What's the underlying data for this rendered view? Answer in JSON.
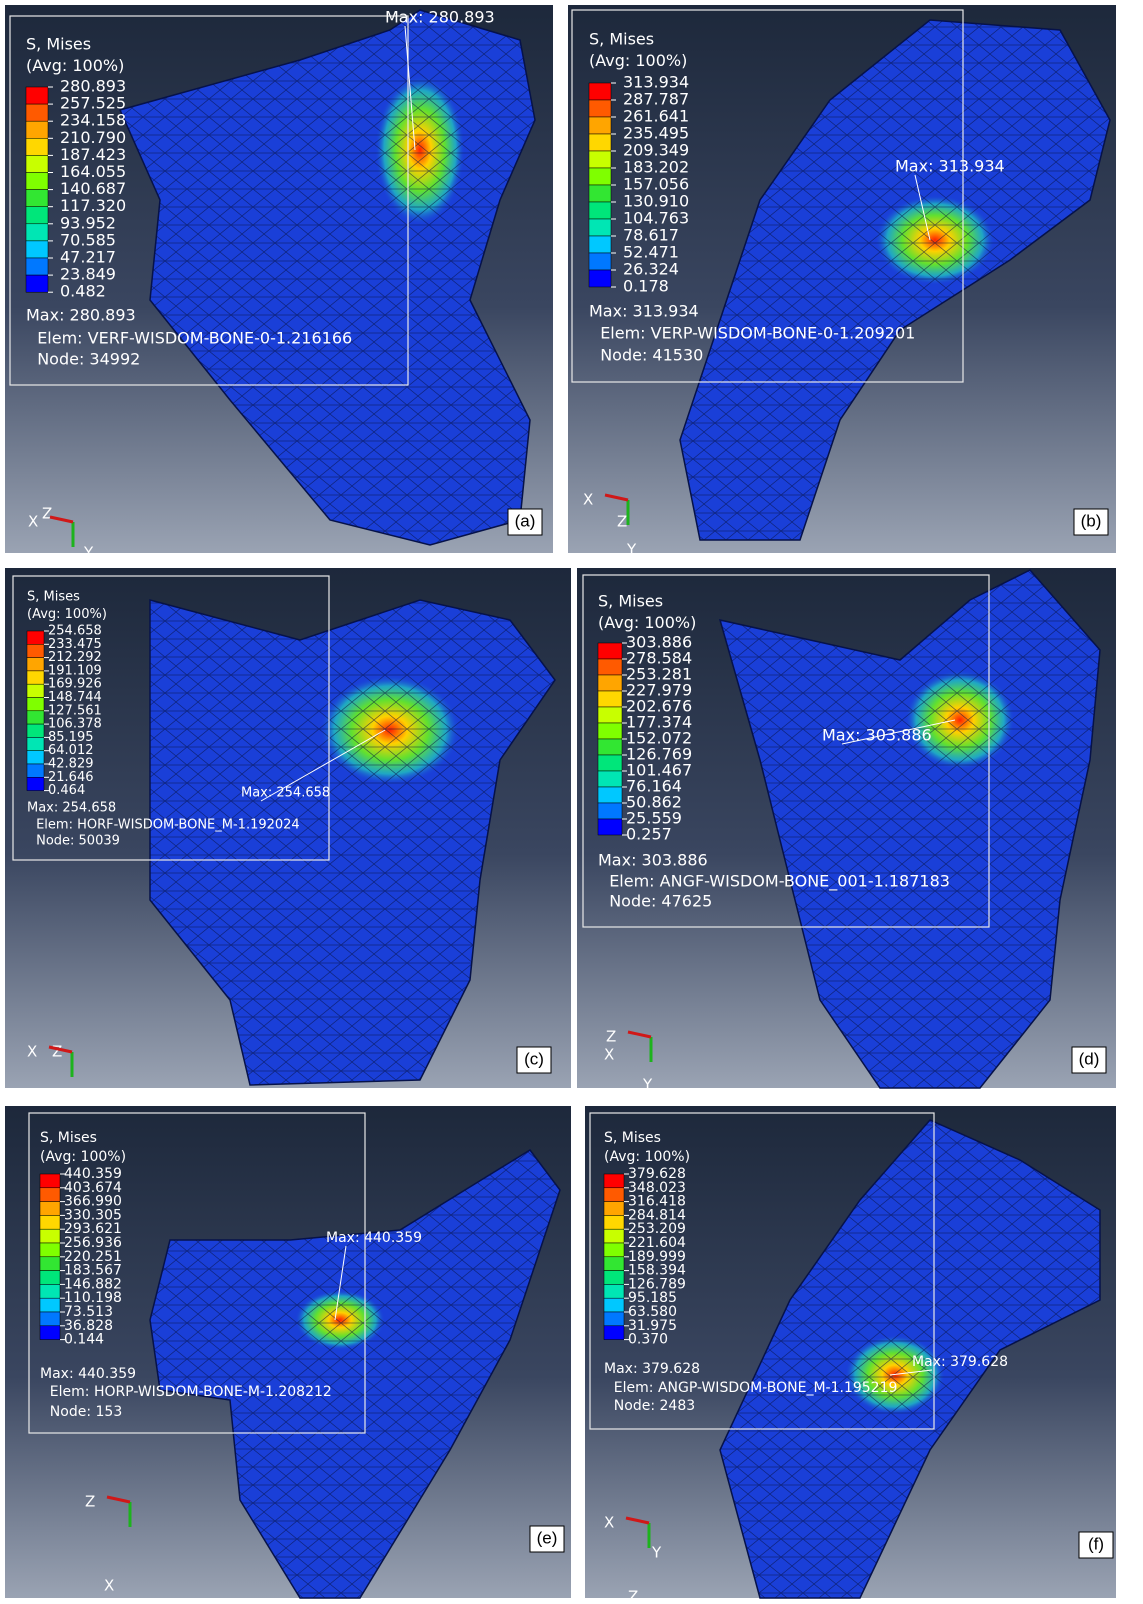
{
  "panels": [
    {
      "label": "(a)",
      "legend_title": "S, Mises",
      "legend_avg": "(Avg: 100%)",
      "legend_values": [
        "280.893",
        "257.525",
        "234.158",
        "210.790",
        "187.423",
        "164.055",
        "140.687",
        "117.320",
        "93.952",
        "70.585",
        "47.217",
        "23.849",
        "0.482"
      ],
      "max": "Max: 280.893",
      "elem": "Elem: VERF-WISDOM-BONE-0-1.216166",
      "node": "Node: 34992",
      "max_marker": "Max: 280.893",
      "axes": [
        "X",
        "Z",
        "Y"
      ]
    },
    {
      "label": "(b)",
      "legend_title": "S, Mises",
      "legend_avg": "(Avg: 100%)",
      "legend_values": [
        "313.934",
        "287.787",
        "261.641",
        "235.495",
        "209.349",
        "183.202",
        "157.056",
        "130.910",
        "104.763",
        "78.617",
        "52.471",
        "26.324",
        "0.178"
      ],
      "max": "Max: 313.934",
      "elem": "Elem: VERP-WISDOM-BONE-0-1.209201",
      "node": "Node: 41530",
      "max_marker": "Max: 313.934",
      "axes": [
        "X",
        "Z",
        "Y"
      ]
    },
    {
      "label": "(c)",
      "legend_title": "S, Mises",
      "legend_avg": "(Avg: 100%)",
      "legend_values": [
        "254.658",
        "233.475",
        "212.292",
        "191.109",
        "169.926",
        "148.744",
        "127.561",
        "106.378",
        "85.195",
        "64.012",
        "42.829",
        "21.646",
        "0.464"
      ],
      "max": "Max: 254.658",
      "elem": "Elem: HORF-WISDOM-BONE_M-1.192024",
      "node": "Node: 50039",
      "max_marker": "Max: 254.658",
      "axes": [
        "X",
        "Z"
      ]
    },
    {
      "label": "(d)",
      "legend_title": "S, Mises",
      "legend_avg": "(Avg: 100%)",
      "legend_values": [
        "303.886",
        "278.584",
        "253.281",
        "227.979",
        "202.676",
        "177.374",
        "152.072",
        "126.769",
        "101.467",
        "76.164",
        "50.862",
        "25.559",
        "0.257"
      ],
      "max": "Max: 303.886",
      "elem": "Elem: ANGF-WISDOM-BONE_001-1.187183",
      "node": "Node: 47625",
      "max_marker": "Max: 303.886",
      "axes": [
        "Z",
        "X",
        "Y"
      ]
    },
    {
      "label": "(e)",
      "legend_title": "S, Mises",
      "legend_avg": "(Avg: 100%)",
      "legend_values": [
        "440.359",
        "403.674",
        "366.990",
        "330.305",
        "293.621",
        "256.936",
        "220.251",
        "183.567",
        "146.882",
        "110.198",
        "73.513",
        "36.828",
        "0.144"
      ],
      "max": "Max: 440.359",
      "elem": "Elem: HORP-WISDOM-BONE-M-1.208212",
      "node": "Node: 153",
      "max_marker": "Max: 440.359",
      "axes": [
        "Z",
        "X"
      ]
    },
    {
      "label": "(f)",
      "legend_title": "S, Mises",
      "legend_avg": "(Avg: 100%)",
      "legend_values": [
        "379.628",
        "348.023",
        "316.418",
        "284.814",
        "253.209",
        "221.604",
        "189.999",
        "158.394",
        "126.789",
        "95.185",
        "63.580",
        "31.975",
        "0.370"
      ],
      "max": "Max: 379.628",
      "elem": "Elem: ANGP-WISDOM-BONE_M-1.195219",
      "node": "Node: 2483",
      "max_marker": "Max: 379.628",
      "axes": [
        "X",
        "Y",
        "Z"
      ]
    }
  ]
}
